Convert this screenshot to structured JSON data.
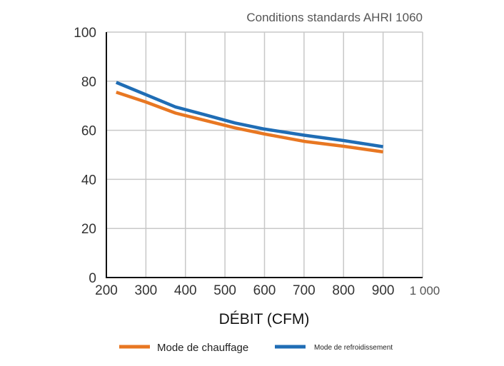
{
  "chart_data": {
    "type": "line",
    "subtitle": "Conditions standards AHRI 1060",
    "xlabel": "DÉBIT (CFM)",
    "ylabel": "",
    "xlim": [
      200,
      1000
    ],
    "ylim": [
      0,
      100
    ],
    "x_ticks": [
      "200",
      "300",
      "400",
      "500",
      "600",
      "700",
      "800",
      "900",
      "1 000"
    ],
    "y_ticks": [
      "0",
      "20",
      "40",
      "60",
      "80",
      "100"
    ],
    "grid": true,
    "legend_position": "bottom",
    "series": [
      {
        "name": "Mode de chauffage",
        "color": "#E87722",
        "x": [
          225,
          300,
          375,
          450,
          525,
          600,
          700,
          800,
          900
        ],
        "y": [
          75.5,
          71.5,
          67,
          64,
          61,
          58.5,
          55.5,
          53.5,
          51.2
        ]
      },
      {
        "name": "Mode de refroidissement",
        "color": "#1F6DB5",
        "x": [
          225,
          300,
          375,
          450,
          525,
          600,
          700,
          800,
          900
        ],
        "y": [
          79.5,
          74.5,
          69.5,
          66.3,
          63,
          60.5,
          58,
          55.8,
          53.3
        ]
      }
    ]
  }
}
